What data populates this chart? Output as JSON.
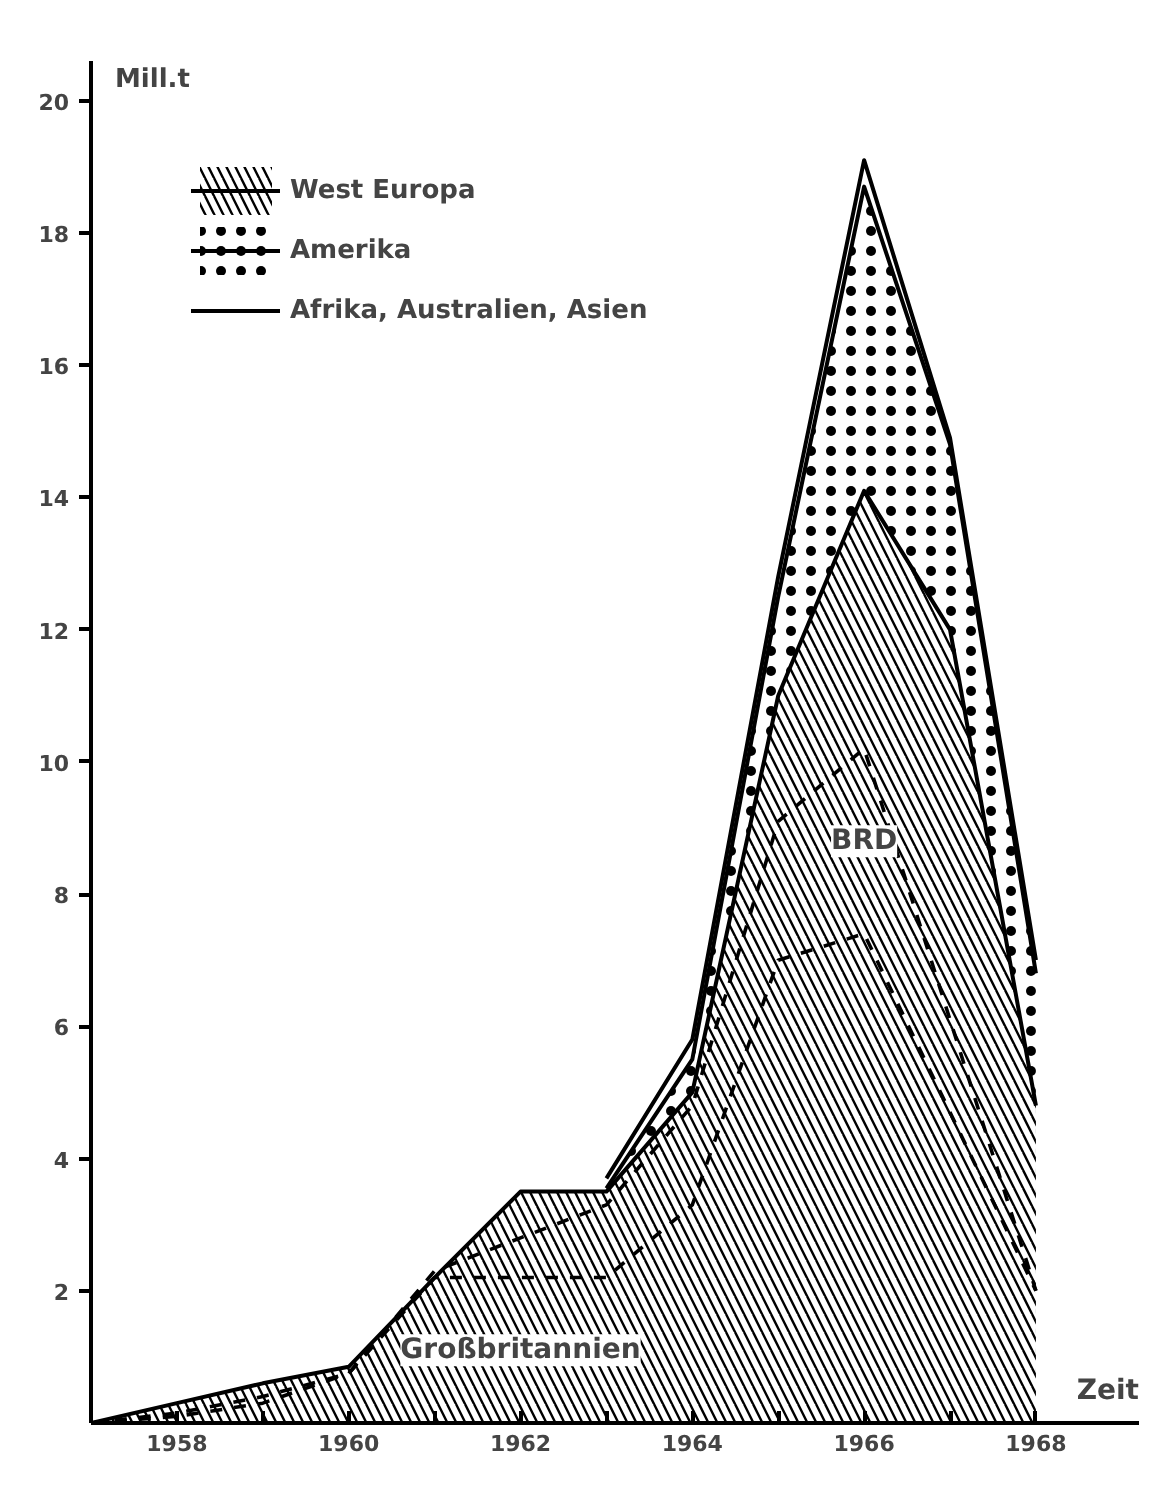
{
  "chart_data": {
    "type": "area",
    "stacked": true,
    "ylabel": "Mill.t",
    "xlabel": "Zeit",
    "x": [
      1957,
      1958,
      1959,
      1960,
      1961,
      1962,
      1963,
      1964,
      1965,
      1966,
      1967,
      1968
    ],
    "series": [
      {
        "name": "West Europa",
        "color": "#000000",
        "values": [
          0,
          0.3,
          0.6,
          0.85,
          2.2,
          3.5,
          3.5,
          5.0,
          11.0,
          14.1,
          12.0,
          4.8
        ]
      },
      {
        "name": "Amerika",
        "color": "#000000",
        "values": [
          null,
          null,
          null,
          null,
          null,
          null,
          0.05,
          0.5,
          1.5,
          4.6,
          2.8,
          2.0
        ]
      },
      {
        "name": "Afrika, Australien, Asien",
        "color": "#000000",
        "values": [
          null,
          null,
          null,
          null,
          null,
          null,
          0.15,
          0.3,
          0.3,
          0.4,
          0.1,
          0.2
        ]
      },
      {
        "type": "line",
        "line_style": "dashed",
        "color": "#000000",
        "x": [
          1957,
          1958,
          1959,
          1960,
          1961,
          1962,
          1963,
          1964,
          1965,
          1966,
          1968
        ],
        "values": [
          0,
          0.15,
          0.4,
          0.75,
          2.3,
          2.8,
          3.3,
          4.8,
          9.1,
          10.2,
          2.0
        ]
      },
      {
        "type": "line",
        "line_style": "dashed",
        "color": "#000000",
        "x": [
          1957,
          1958,
          1959,
          1960,
          1961,
          1962,
          1963,
          1964,
          1965,
          1966,
          1968
        ],
        "values": [
          0,
          0.1,
          0.3,
          0.75,
          2.2,
          2.2,
          2.2,
          3.3,
          7.0,
          7.4,
          2.0
        ]
      }
    ],
    "annotations": [
      "BRD",
      "Großbritannien"
    ],
    "xlim": [
      1957,
      1969.2
    ],
    "ylim": [
      0,
      20.6
    ],
    "xticks": [
      1958,
      {
        "value": 1959,
        "label": null
      },
      1960,
      {
        "value": 1961,
        "label": null
      },
      1962,
      {
        "value": 1963,
        "label": null
      },
      1964,
      {
        "value": 1965,
        "label": null
      },
      1966,
      {
        "value": 1967,
        "label": null
      },
      1968
    ],
    "yticks": [
      2,
      4,
      6,
      8,
      10,
      12,
      14,
      16,
      18,
      20
    ],
    "grid": false,
    "legend": "top left"
  }
}
